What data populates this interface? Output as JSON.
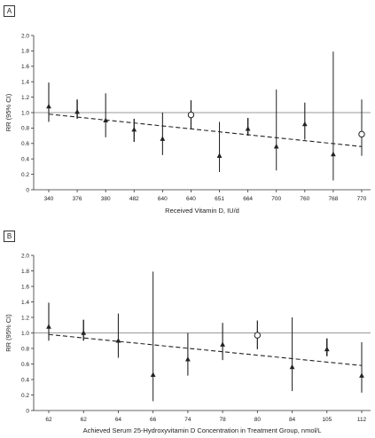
{
  "chart_data": [
    {
      "panel": "A",
      "type": "scatter",
      "ylabel": "RR (95% CI)",
      "xlabel": "Received Vitamin D, IU/d",
      "ylim": [
        0,
        2.0
      ],
      "yticks": [
        "0",
        "0.2",
        "0.4",
        "0.6",
        "0.8",
        "1.0",
        "1.2",
        "1.4",
        "1.6",
        "1.8",
        "2.0"
      ],
      "reference_line": 1.0,
      "trend": {
        "from": 0.98,
        "to": 0.56
      },
      "categories": [
        "340",
        "376",
        "380",
        "482",
        "640",
        "640",
        "651",
        "664",
        "700",
        "760",
        "768",
        "770"
      ],
      "points": [
        {
          "rr": 1.08,
          "lo": 0.88,
          "hi": 1.39,
          "marker": "triangle"
        },
        {
          "rr": 1.01,
          "lo": 0.92,
          "hi": 1.17,
          "marker": "triangle"
        },
        {
          "rr": 0.9,
          "lo": 0.68,
          "hi": 1.25,
          "marker": "triangle"
        },
        {
          "rr": 0.78,
          "lo": 0.62,
          "hi": 0.92,
          "marker": "triangle"
        },
        {
          "rr": 0.66,
          "lo": 0.45,
          "hi": 1.0,
          "marker": "triangle"
        },
        {
          "rr": 0.97,
          "lo": 0.79,
          "hi": 1.16,
          "marker": "circle"
        },
        {
          "rr": 0.44,
          "lo": 0.23,
          "hi": 0.88,
          "marker": "triangle"
        },
        {
          "rr": 0.79,
          "lo": 0.7,
          "hi": 0.93,
          "marker": "triangle"
        },
        {
          "rr": 0.56,
          "lo": 0.25,
          "hi": 1.3,
          "marker": "triangle"
        },
        {
          "rr": 0.85,
          "lo": 0.65,
          "hi": 1.13,
          "marker": "triangle"
        },
        {
          "rr": 0.46,
          "lo": 0.12,
          "hi": 1.79,
          "marker": "triangle"
        },
        {
          "rr": 0.72,
          "lo": 0.44,
          "hi": 1.17,
          "marker": "circle"
        }
      ]
    },
    {
      "panel": "B",
      "type": "scatter",
      "ylabel": "RR (95% CI)",
      "xlabel": "Achieved Serum 25-Hydroxyvitamin D Concentration in Treatment Group, nmol/L",
      "ylim": [
        0,
        2.0
      ],
      "yticks": [
        "0",
        "0.2",
        "0.4",
        "0.6",
        "0.8",
        "1.0",
        "1.2",
        "1.4",
        "1.6",
        "1.8",
        "2.0"
      ],
      "reference_line": 1.0,
      "trend": {
        "from": 0.98,
        "to": 0.58
      },
      "categories": [
        "62",
        "62",
        "64",
        "66",
        "74",
        "78",
        "80",
        "84",
        "105",
        "112"
      ],
      "points": [
        {
          "rr": 1.08,
          "lo": 0.9,
          "hi": 1.39,
          "marker": "triangle"
        },
        {
          "rr": 1.0,
          "lo": 0.9,
          "hi": 1.17,
          "marker": "triangle"
        },
        {
          "rr": 0.9,
          "lo": 0.68,
          "hi": 1.25,
          "marker": "triangle"
        },
        {
          "rr": 0.46,
          "lo": 0.12,
          "hi": 1.79,
          "marker": "triangle"
        },
        {
          "rr": 0.66,
          "lo": 0.45,
          "hi": 1.0,
          "marker": "triangle"
        },
        {
          "rr": 0.85,
          "lo": 0.65,
          "hi": 1.13,
          "marker": "triangle"
        },
        {
          "rr": 0.97,
          "lo": 0.79,
          "hi": 1.16,
          "marker": "circle"
        },
        {
          "rr": 0.56,
          "lo": 0.25,
          "hi": 1.2,
          "marker": "triangle"
        },
        {
          "rr": 0.79,
          "lo": 0.7,
          "hi": 0.93,
          "marker": "triangle"
        },
        {
          "rr": 0.45,
          "lo": 0.23,
          "hi": 0.88,
          "marker": "triangle"
        }
      ]
    }
  ]
}
